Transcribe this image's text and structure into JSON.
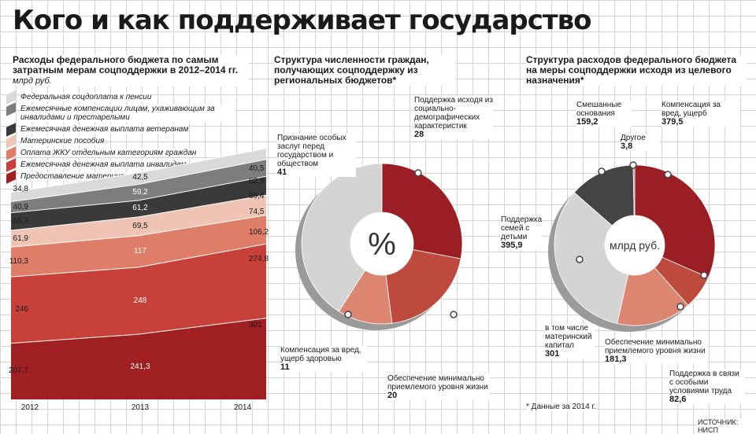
{
  "title": "Кого и как поддерживает государство",
  "chart_data": [
    {
      "type": "area",
      "title": "Расходы федерального бюджета по самым затратным мерам соцподдержки в 2012–2014 гг.",
      "unit": "млрд руб.",
      "x": [
        "2012",
        "2013",
        "2014"
      ],
      "series": [
        {
          "name": "Предоставление материнского семейного капитала",
          "values": [
            207.7,
            241.3,
            301
          ],
          "color": "#a01f22"
        },
        {
          "name": "Ежемесячная денежная выплата инвалидам",
          "values": [
            246,
            248,
            274.8
          ],
          "color": "#c8403a"
        },
        {
          "name": "Оплата ЖКУ отдельным категориям граждан",
          "values": [
            110.3,
            117,
            106.2
          ],
          "color": "#df7e68"
        },
        {
          "name": "Материнские пособия",
          "values": [
            61.9,
            69.5,
            74.5
          ],
          "color": "#f0c4b4"
        },
        {
          "name": "Ежемесячная денежная выплата ветеранам",
          "values": [
            65.3,
            61.2,
            69.4
          ],
          "color": "#3a3a3a"
        },
        {
          "name": "Ежемесячные компенсации лицам, ухаживающим за инвалидами и престарелыми",
          "values": [
            40.9,
            59.2,
            62.9
          ],
          "color": "#7d7d7d"
        },
        {
          "name": "Федеральная соцдоплата к пенсии",
          "values": [
            34.8,
            42.5,
            40.5
          ],
          "color": "#d9d9d9"
        }
      ],
      "labels": {
        "left": [
          "207,7",
          "246",
          "110,3",
          "61,9",
          "65,3",
          "40,9",
          "34,8"
        ],
        "mid": [
          "241,3",
          "248",
          "117",
          "69,5",
          "61,2",
          "59,2",
          "42,5"
        ],
        "right": [
          "301",
          "274,8",
          "106,2",
          "74,5",
          "69,4",
          "62,9",
          "40,5"
        ]
      },
      "legend_order": [
        6,
        5,
        4,
        3,
        2,
        1,
        0
      ]
    },
    {
      "type": "pie",
      "title": "Структура численности граждан, получающих соцподдержку из региональных бюджетов*",
      "center_label": "%",
      "slices": [
        {
          "name": "Поддержка исходя из социально-демографических характеристик",
          "value": 28,
          "label": "28",
          "color": "#9a1e23"
        },
        {
          "name": "Обеспечение минимально приемлемого уровня жизни",
          "value": 20,
          "label": "20",
          "color": "#be4a3e"
        },
        {
          "name": "Компенсация за вред, ущерб здоровью",
          "value": 11,
          "label": "11",
          "color": "#dc8570"
        },
        {
          "name": "Признание особых заслуг перед государством и обществом",
          "value": 41,
          "label": "41",
          "color": "#d4d4d4"
        }
      ]
    },
    {
      "type": "pie",
      "title": "Структура расходов федерального бюджета на меры соцподдержки исходя из целевого назначения*",
      "center_label": "млрд руб.",
      "slices": [
        {
          "name": "Компенсация за вред, ущерб",
          "value": 379.5,
          "label": "379,5",
          "color": "#9a1e23"
        },
        {
          "name": "Поддержка в связи с особыми условиями труда",
          "value": 82.6,
          "label": "82,6",
          "color": "#be4a3e"
        },
        {
          "name": "Обеспечение минимально приемлемого уровня жизни",
          "value": 181.3,
          "label": "181,3",
          "color": "#dc8570"
        },
        {
          "name": "Поддержка семей с детьми",
          "value": 395.9,
          "label": "395,9",
          "color": "#d4d4d4"
        },
        {
          "name": "Смешанные основания",
          "value": 159.2,
          "label": "159,2",
          "color": "#444444"
        },
        {
          "name": "Другое",
          "value": 3.8,
          "label": "3,8",
          "color": "#8a8a8a"
        }
      ],
      "sub_note": {
        "name": "в том числе материнский капитал",
        "value": "301"
      }
    }
  ],
  "footnote": "* Данные за 2014 г.",
  "source": "ИСТОЧНИК: НИСП"
}
